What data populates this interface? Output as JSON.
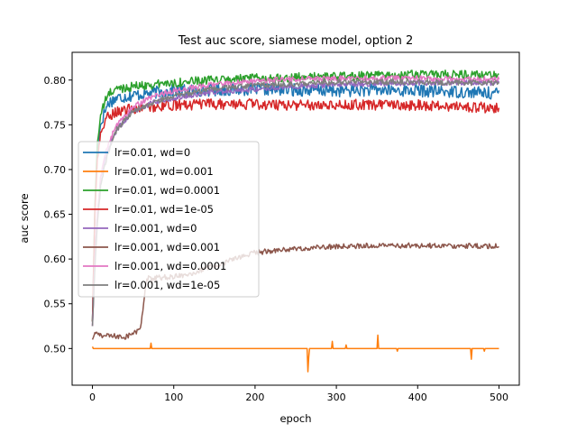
{
  "chart_data": {
    "type": "line",
    "title": "Test auc score, siamese model, option 2",
    "xlabel": "epoch",
    "ylabel": "auc score",
    "xlim": [
      -25,
      525
    ],
    "ylim": [
      0.459,
      0.831
    ],
    "xticks": [
      0,
      100,
      200,
      300,
      400,
      500
    ],
    "yticks": [
      0.5,
      0.55,
      0.6,
      0.65,
      0.7,
      0.75,
      0.8
    ],
    "xtick_labels": [
      "0",
      "100",
      "200",
      "300",
      "400",
      "500"
    ],
    "ytick_labels": [
      "0.50",
      "0.55",
      "0.60",
      "0.65",
      "0.70",
      "0.75",
      "0.80"
    ],
    "grid": false,
    "legend_position": "center-left",
    "series": [
      {
        "name": "lr=0.01, wd=0",
        "color": "#1f77b4",
        "x": [
          0,
          3,
          6,
          10,
          15,
          20,
          30,
          50,
          75,
          100,
          150,
          200,
          250,
          300,
          350,
          400,
          450,
          500
        ],
        "y": [
          0.53,
          0.65,
          0.72,
          0.75,
          0.765,
          0.775,
          0.78,
          0.783,
          0.786,
          0.788,
          0.789,
          0.79,
          0.789,
          0.788,
          0.789,
          0.788,
          0.787,
          0.785
        ],
        "noise": 0.007
      },
      {
        "name": "lr=0.01, wd=0.001",
        "color": "#ff7f0e",
        "x": [
          0,
          1,
          2,
          500
        ],
        "y": [
          0.502,
          0.5,
          0.5,
          0.5
        ],
        "noise": 0,
        "spikes": [
          [
            72,
            0.506
          ],
          [
            265,
            0.474
          ],
          [
            266,
            0.49
          ],
          [
            295,
            0.508
          ],
          [
            312,
            0.504
          ],
          [
            351,
            0.515
          ],
          [
            375,
            0.497
          ],
          [
            466,
            0.488
          ],
          [
            482,
            0.497
          ]
        ]
      },
      {
        "name": "lr=0.01, wd=0.0001",
        "color": "#2ca02c",
        "x": [
          0,
          3,
          6,
          10,
          15,
          20,
          30,
          50,
          75,
          100,
          150,
          200,
          250,
          300,
          350,
          400,
          450,
          500
        ],
        "y": [
          0.53,
          0.66,
          0.73,
          0.76,
          0.775,
          0.785,
          0.79,
          0.793,
          0.795,
          0.797,
          0.8,
          0.802,
          0.803,
          0.804,
          0.805,
          0.806,
          0.806,
          0.805
        ],
        "noise": 0.005
      },
      {
        "name": "lr=0.01, wd=1e-05",
        "color": "#d62728",
        "x": [
          0,
          3,
          6,
          10,
          15,
          20,
          30,
          50,
          75,
          100,
          150,
          200,
          250,
          300,
          350,
          400,
          450,
          500
        ],
        "y": [
          0.53,
          0.65,
          0.71,
          0.74,
          0.752,
          0.76,
          0.765,
          0.768,
          0.77,
          0.772,
          0.773,
          0.773,
          0.772,
          0.773,
          0.772,
          0.772,
          0.771,
          0.768
        ],
        "noise": 0.006
      },
      {
        "name": "lr=0.001, wd=0",
        "color": "#9467bd",
        "x": [
          0,
          3,
          6,
          10,
          15,
          20,
          30,
          50,
          75,
          100,
          150,
          200,
          250,
          300,
          350,
          400,
          450,
          500
        ],
        "y": [
          0.525,
          0.6,
          0.65,
          0.69,
          0.71,
          0.725,
          0.745,
          0.765,
          0.775,
          0.78,
          0.787,
          0.79,
          0.793,
          0.795,
          0.796,
          0.797,
          0.797,
          0.797
        ],
        "noise": 0.003
      },
      {
        "name": "lr=0.001, wd=0.001",
        "color": "#8c564b",
        "x": [
          0,
          3,
          6,
          10,
          20,
          40,
          58,
          62,
          66,
          70,
          73,
          76,
          80,
          100,
          125,
          150,
          175,
          200,
          225,
          250,
          275,
          300,
          350,
          400,
          450,
          500
        ],
        "y": [
          0.51,
          0.517,
          0.517,
          0.515,
          0.514,
          0.513,
          0.52,
          0.54,
          0.575,
          0.58,
          0.575,
          0.578,
          0.579,
          0.58,
          0.585,
          0.592,
          0.6,
          0.607,
          0.61,
          0.611,
          0.613,
          0.614,
          0.615,
          0.615,
          0.615,
          0.614
        ],
        "noise": 0.003
      },
      {
        "name": "lr=0.001, wd=0.0001",
        "color": "#e377c2",
        "x": [
          0,
          3,
          6,
          10,
          15,
          20,
          30,
          50,
          75,
          100,
          150,
          200,
          250,
          300,
          350,
          400,
          450,
          500
        ],
        "y": [
          0.525,
          0.6,
          0.65,
          0.69,
          0.715,
          0.73,
          0.75,
          0.77,
          0.782,
          0.788,
          0.795,
          0.799,
          0.801,
          0.802,
          0.802,
          0.802,
          0.801,
          0.801
        ],
        "noise": 0.003
      },
      {
        "name": "lr=0.001, wd=1e-05",
        "color": "#7f7f7f",
        "x": [
          0,
          3,
          6,
          10,
          15,
          20,
          30,
          50,
          75,
          100,
          150,
          200,
          250,
          300,
          350,
          400,
          450,
          500
        ],
        "y": [
          0.525,
          0.59,
          0.64,
          0.68,
          0.705,
          0.72,
          0.745,
          0.765,
          0.775,
          0.782,
          0.79,
          0.794,
          0.796,
          0.798,
          0.798,
          0.798,
          0.797,
          0.797
        ],
        "noise": 0.003
      }
    ]
  }
}
